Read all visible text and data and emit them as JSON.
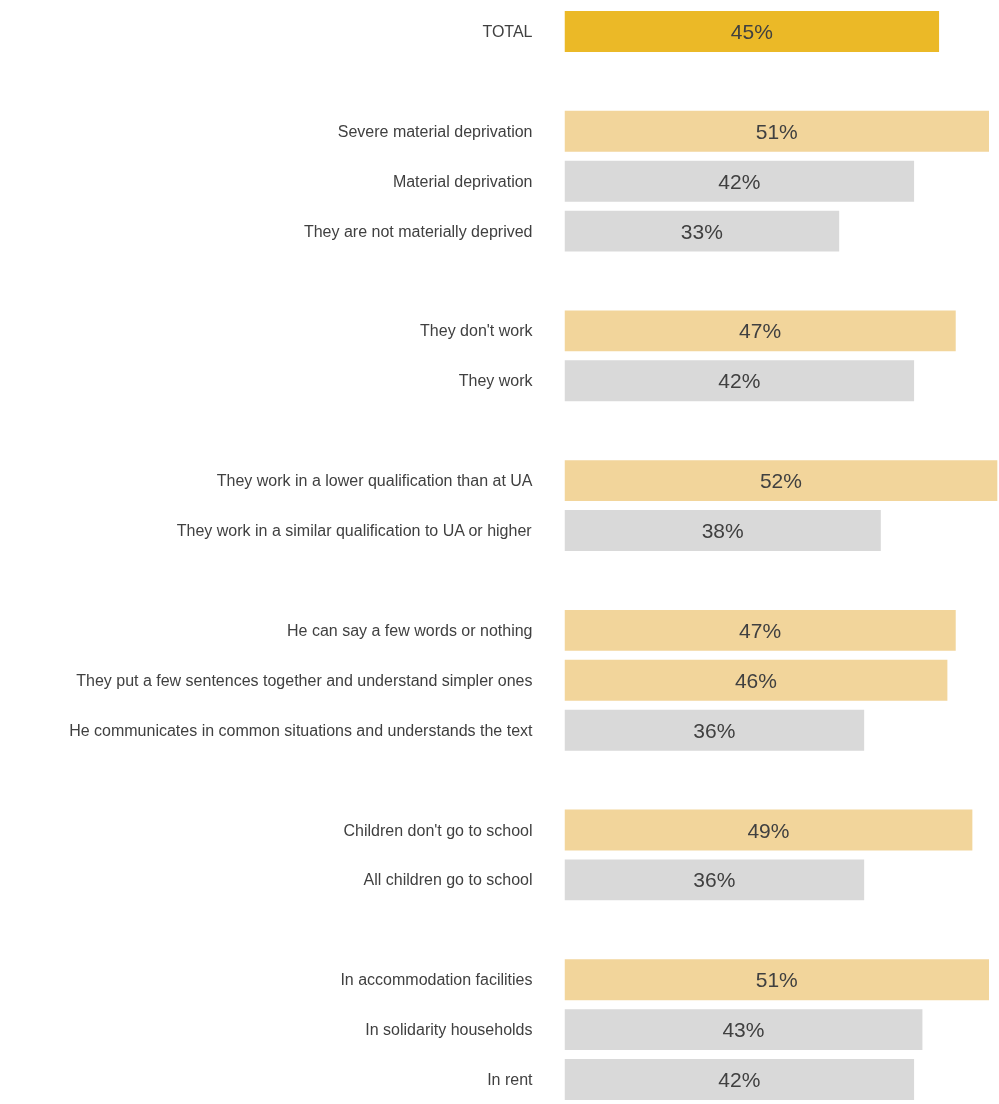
{
  "chart_data": {
    "type": "bar",
    "orientation": "horizontal",
    "categories": [
      "TOTAL",
      null,
      "Severe material deprivation",
      "Material deprivation",
      "They are not materially deprived",
      null,
      "They don't work",
      "They work",
      null,
      "They work in a lower qualification than at UA",
      "They work in a similar qualification to UA or higher",
      null,
      "He can say a few words or nothing",
      "They put a few sentences together and understand simpler ones",
      "He communicates in common situations and understands the text",
      null,
      "Children don't go to school",
      "All children go to school",
      null,
      "In accommodation facilities",
      "In solidarity households",
      "In rent"
    ],
    "values": [
      45,
      null,
      51,
      42,
      33,
      null,
      47,
      42,
      null,
      52,
      38,
      null,
      47,
      46,
      36,
      null,
      49,
      36,
      null,
      51,
      43,
      42
    ],
    "value_labels": [
      "45%",
      null,
      "51%",
      "42%",
      "33%",
      null,
      "47%",
      "42%",
      null,
      "52%",
      "38%",
      null,
      "47%",
      "46%",
      "36%",
      null,
      "49%",
      "36%",
      null,
      "51%",
      "43%",
      "42%"
    ],
    "colors": [
      "#ebb927",
      null,
      "#f2d59b",
      "#d9d9d9",
      "#d9d9d9",
      null,
      "#f2d59b",
      "#d9d9d9",
      null,
      "#f2d59b",
      "#d9d9d9",
      null,
      "#f2d59b",
      "#f2d59b",
      "#d9d9d9",
      null,
      "#f2d59b",
      "#d9d9d9",
      null,
      "#f2d59b",
      "#d9d9d9",
      "#d9d9d9"
    ],
    "grid": false
  }
}
